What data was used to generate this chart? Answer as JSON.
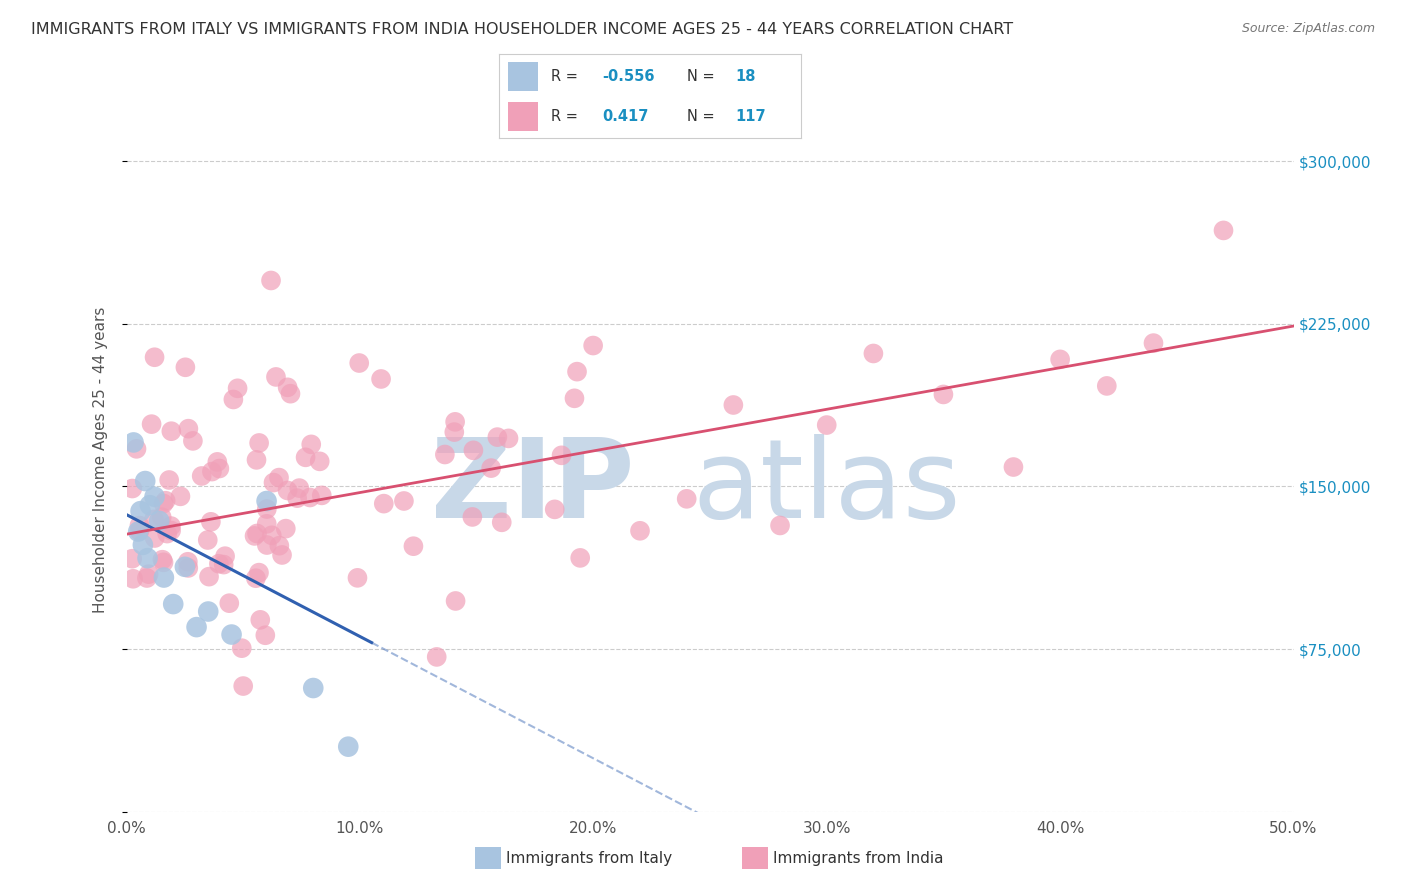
{
  "title": "IMMIGRANTS FROM ITALY VS IMMIGRANTS FROM INDIA HOUSEHOLDER INCOME AGES 25 - 44 YEARS CORRELATION CHART",
  "source": "Source: ZipAtlas.com",
  "ylabel": "Householder Income Ages 25 - 44 years",
  "xlim": [
    0.0,
    50.0
  ],
  "ylim": [
    0,
    325000
  ],
  "yticks": [
    0,
    75000,
    150000,
    225000,
    300000
  ],
  "ytick_labels": [
    "",
    "$75,000",
    "$150,000",
    "$225,000",
    "$300,000"
  ],
  "xticks": [
    0.0,
    10.0,
    20.0,
    30.0,
    40.0,
    50.0
  ],
  "xtick_labels": [
    "0.0%",
    "10.0%",
    "20.0%",
    "30.0%",
    "40.0%",
    "50.0%"
  ],
  "italy_color": "#a8c4e0",
  "india_color": "#f0a0b8",
  "italy_line_color": "#3060b0",
  "india_line_color": "#d85070",
  "italy_N": 18,
  "india_N": 117,
  "background_color": "#ffffff",
  "watermark_color": "#c8d8e8",
  "legend_italy_label": "Immigrants from Italy",
  "legend_india_label": "Immigrants from India",
  "italy_line_x0": 0.0,
  "italy_line_y0": 137000,
  "italy_line_x1": 10.5,
  "italy_line_y1": 78000,
  "india_line_x0": 0.0,
  "india_line_y0": 128000,
  "india_line_x1": 50.0,
  "india_line_y1": 224000
}
